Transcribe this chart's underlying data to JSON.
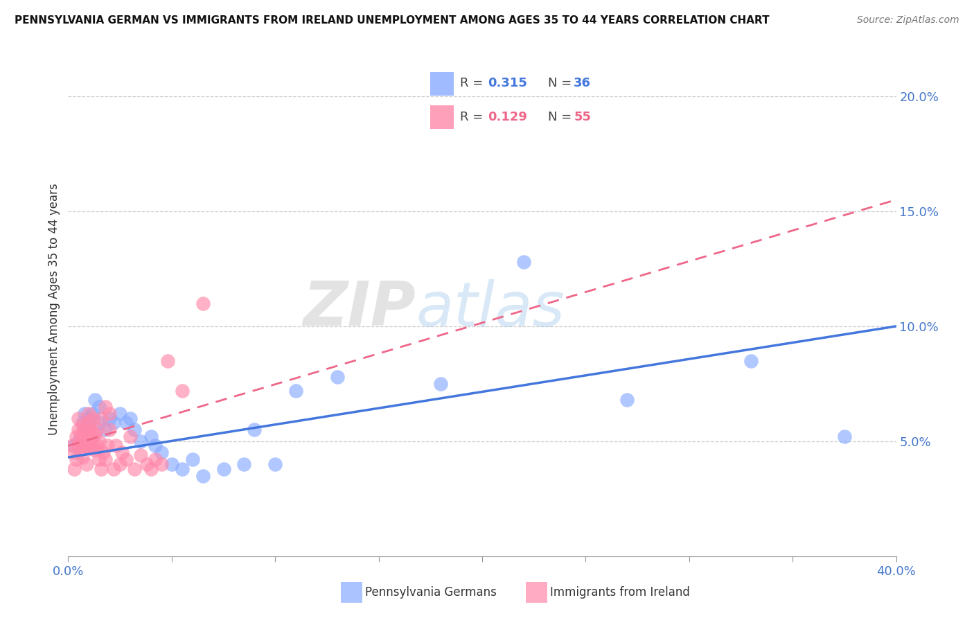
{
  "title": "PENNSYLVANIA GERMAN VS IMMIGRANTS FROM IRELAND UNEMPLOYMENT AMONG AGES 35 TO 44 YEARS CORRELATION CHART",
  "source": "Source: ZipAtlas.com",
  "ylabel": "Unemployment Among Ages 35 to 44 years",
  "xlim": [
    0.0,
    0.4
  ],
  "ylim": [
    0.0,
    0.215
  ],
  "xticks": [
    0.0,
    0.05,
    0.1,
    0.15,
    0.2,
    0.25,
    0.3,
    0.35,
    0.4
  ],
  "yticks_right": [
    0.05,
    0.1,
    0.15,
    0.2
  ],
  "ytick_labels_right": [
    "5.0%",
    "10.0%",
    "15.0%",
    "20.0%"
  ],
  "blue_color": "#88aaff",
  "pink_color": "#ff88aa",
  "blue_line_color": "#4477dd",
  "pink_line_color": "#ee6688",
  "watermark": "ZIPatlas",
  "blue_x": [
    0.003,
    0.005,
    0.007,
    0.008,
    0.01,
    0.01,
    0.012,
    0.013,
    0.015,
    0.015,
    0.018,
    0.02,
    0.022,
    0.025,
    0.028,
    0.03,
    0.032,
    0.035,
    0.04,
    0.042,
    0.045,
    0.05,
    0.055,
    0.06,
    0.065,
    0.075,
    0.085,
    0.09,
    0.1,
    0.11,
    0.13,
    0.18,
    0.22,
    0.27,
    0.33,
    0.375
  ],
  "blue_y": [
    0.048,
    0.05,
    0.058,
    0.062,
    0.055,
    0.06,
    0.062,
    0.068,
    0.058,
    0.065,
    0.055,
    0.06,
    0.058,
    0.062,
    0.058,
    0.06,
    0.055,
    0.05,
    0.052,
    0.048,
    0.045,
    0.04,
    0.038,
    0.042,
    0.035,
    0.038,
    0.04,
    0.055,
    0.04,
    0.072,
    0.078,
    0.075,
    0.128,
    0.068,
    0.085,
    0.052
  ],
  "pink_x": [
    0.002,
    0.003,
    0.003,
    0.004,
    0.004,
    0.005,
    0.005,
    0.005,
    0.006,
    0.006,
    0.007,
    0.007,
    0.007,
    0.008,
    0.008,
    0.009,
    0.009,
    0.01,
    0.01,
    0.01,
    0.01,
    0.011,
    0.011,
    0.012,
    0.012,
    0.012,
    0.013,
    0.013,
    0.014,
    0.014,
    0.015,
    0.015,
    0.016,
    0.016,
    0.017,
    0.018,
    0.018,
    0.019,
    0.02,
    0.02,
    0.022,
    0.023,
    0.025,
    0.026,
    0.028,
    0.03,
    0.032,
    0.035,
    0.038,
    0.04,
    0.042,
    0.045,
    0.048,
    0.055,
    0.065
  ],
  "pink_y": [
    0.048,
    0.038,
    0.045,
    0.042,
    0.052,
    0.048,
    0.055,
    0.06,
    0.046,
    0.052,
    0.043,
    0.05,
    0.057,
    0.048,
    0.055,
    0.04,
    0.048,
    0.05,
    0.053,
    0.058,
    0.062,
    0.047,
    0.055,
    0.048,
    0.052,
    0.06,
    0.046,
    0.053,
    0.048,
    0.055,
    0.042,
    0.05,
    0.038,
    0.06,
    0.045,
    0.042,
    0.065,
    0.048,
    0.055,
    0.062,
    0.038,
    0.048,
    0.04,
    0.045,
    0.042,
    0.052,
    0.038,
    0.044,
    0.04,
    0.038,
    0.042,
    0.04,
    0.085,
    0.072,
    0.11
  ],
  "blue_trend_x0": 0.0,
  "blue_trend_y0": 0.043,
  "blue_trend_x1": 0.4,
  "blue_trend_y1": 0.1,
  "pink_trend_x0": 0.0,
  "pink_trend_y0": 0.048,
  "pink_trend_x1": 0.4,
  "pink_trend_y1": 0.155
}
